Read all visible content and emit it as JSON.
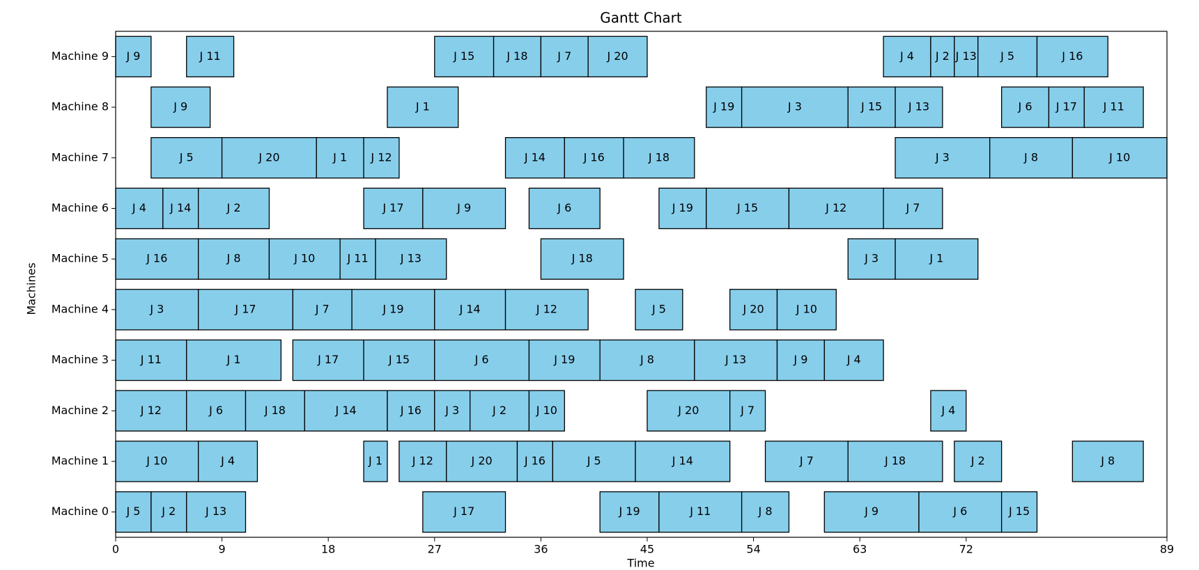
{
  "chart_data": {
    "type": "gantt",
    "title": "Gantt Chart",
    "x_label": "Time",
    "y_label": "Machines",
    "color": "#87ceeb",
    "edge_color": "#000000",
    "xlim": [
      0,
      89
    ],
    "xticks": [
      0,
      9,
      18,
      27,
      36,
      45,
      54,
      63,
      72,
      89
    ],
    "categories": [
      "Machine 0",
      "Machine 1",
      "Machine 2",
      "Machine 3",
      "Machine 4",
      "Machine 5",
      "Machine 6",
      "Machine 7",
      "Machine 8",
      "Machine 9"
    ],
    "tasks": [
      [
        {
          "label": "J 5",
          "start": 0,
          "duration": 3
        },
        {
          "label": "J 2",
          "start": 3,
          "duration": 3
        },
        {
          "label": "J 13",
          "start": 6,
          "duration": 5
        },
        {
          "label": "J 17",
          "start": 26,
          "duration": 7
        },
        {
          "label": "J 19",
          "start": 41,
          "duration": 5
        },
        {
          "label": "J 11",
          "start": 46,
          "duration": 7
        },
        {
          "label": "J 8",
          "start": 53,
          "duration": 4
        },
        {
          "label": "J 9",
          "start": 60,
          "duration": 8
        },
        {
          "label": "J 6",
          "start": 68,
          "duration": 7
        },
        {
          "label": "J 15",
          "start": 75,
          "duration": 3
        }
      ],
      [
        {
          "label": "J 10",
          "start": 0,
          "duration": 7
        },
        {
          "label": "J 4",
          "start": 7,
          "duration": 5
        },
        {
          "label": "J 1",
          "start": 21,
          "duration": 2
        },
        {
          "label": "J 12",
          "start": 24,
          "duration": 4
        },
        {
          "label": "J 20",
          "start": 28,
          "duration": 6
        },
        {
          "label": "J 16",
          "start": 34,
          "duration": 3
        },
        {
          "label": "J 5",
          "start": 37,
          "duration": 7
        },
        {
          "label": "J 14",
          "start": 44,
          "duration": 8
        },
        {
          "label": "J 7",
          "start": 55,
          "duration": 7
        },
        {
          "label": "J 18",
          "start": 62,
          "duration": 8
        },
        {
          "label": "J 2",
          "start": 71,
          "duration": 4
        },
        {
          "label": "J 8",
          "start": 81,
          "duration": 6
        }
      ],
      [
        {
          "label": "J 12",
          "start": 0,
          "duration": 6
        },
        {
          "label": "J 6",
          "start": 6,
          "duration": 5
        },
        {
          "label": "J 18",
          "start": 11,
          "duration": 5
        },
        {
          "label": "J 14",
          "start": 16,
          "duration": 7
        },
        {
          "label": "J 16",
          "start": 23,
          "duration": 4
        },
        {
          "label": "J 3",
          "start": 27,
          "duration": 3
        },
        {
          "label": "J 2",
          "start": 30,
          "duration": 5
        },
        {
          "label": "J 10",
          "start": 35,
          "duration": 3
        },
        {
          "label": "J 20",
          "start": 45,
          "duration": 7
        },
        {
          "label": "J 7",
          "start": 52,
          "duration": 3
        },
        {
          "label": "J 4",
          "start": 69,
          "duration": 3
        }
      ],
      [
        {
          "label": "J 11",
          "start": 0,
          "duration": 6
        },
        {
          "label": "J 1",
          "start": 6,
          "duration": 8
        },
        {
          "label": "J 17",
          "start": 15,
          "duration": 6
        },
        {
          "label": "J 15",
          "start": 21,
          "duration": 6
        },
        {
          "label": "J 6",
          "start": 27,
          "duration": 8
        },
        {
          "label": "J 19",
          "start": 35,
          "duration": 6
        },
        {
          "label": "J 8",
          "start": 41,
          "duration": 8
        },
        {
          "label": "J 13",
          "start": 49,
          "duration": 7
        },
        {
          "label": "J 9",
          "start": 56,
          "duration": 4
        },
        {
          "label": "J 4",
          "start": 60,
          "duration": 5
        }
      ],
      [
        {
          "label": "J 3",
          "start": 0,
          "duration": 7
        },
        {
          "label": "J 17",
          "start": 7,
          "duration": 8
        },
        {
          "label": "J 7",
          "start": 15,
          "duration": 5
        },
        {
          "label": "J 19",
          "start": 20,
          "duration": 7
        },
        {
          "label": "J 14",
          "start": 27,
          "duration": 6
        },
        {
          "label": "J 12",
          "start": 33,
          "duration": 7
        },
        {
          "label": "J 5",
          "start": 44,
          "duration": 4
        },
        {
          "label": "J 20",
          "start": 52,
          "duration": 4
        },
        {
          "label": "J 10",
          "start": 56,
          "duration": 5
        }
      ],
      [
        {
          "label": "J 16",
          "start": 0,
          "duration": 7
        },
        {
          "label": "J 8",
          "start": 7,
          "duration": 6
        },
        {
          "label": "J 10",
          "start": 13,
          "duration": 6
        },
        {
          "label": "J 11",
          "start": 19,
          "duration": 3
        },
        {
          "label": "J 13",
          "start": 22,
          "duration": 6
        },
        {
          "label": "J 18",
          "start": 36,
          "duration": 7
        },
        {
          "label": "J 3",
          "start": 62,
          "duration": 4
        },
        {
          "label": "J 1",
          "start": 66,
          "duration": 7
        }
      ],
      [
        {
          "label": "J 4",
          "start": 0,
          "duration": 4
        },
        {
          "label": "J 14",
          "start": 4,
          "duration": 3
        },
        {
          "label": "J 2",
          "start": 7,
          "duration": 6
        },
        {
          "label": "J 17",
          "start": 21,
          "duration": 5
        },
        {
          "label": "J 9",
          "start": 26,
          "duration": 7
        },
        {
          "label": "J 6",
          "start": 35,
          "duration": 6
        },
        {
          "label": "J 19",
          "start": 46,
          "duration": 4
        },
        {
          "label": "J 15",
          "start": 50,
          "duration": 7
        },
        {
          "label": "J 12",
          "start": 57,
          "duration": 8
        },
        {
          "label": "J 7",
          "start": 65,
          "duration": 5
        }
      ],
      [
        {
          "label": "J 5",
          "start": 3,
          "duration": 6
        },
        {
          "label": "J 20",
          "start": 9,
          "duration": 8
        },
        {
          "label": "J 1",
          "start": 17,
          "duration": 4
        },
        {
          "label": "J 12",
          "start": 21,
          "duration": 3
        },
        {
          "label": "J 14",
          "start": 33,
          "duration": 5
        },
        {
          "label": "J 16",
          "start": 38,
          "duration": 5
        },
        {
          "label": "J 18",
          "start": 43,
          "duration": 6
        },
        {
          "label": "J 3",
          "start": 66,
          "duration": 8
        },
        {
          "label": "J 8",
          "start": 74,
          "duration": 7
        },
        {
          "label": "J 10",
          "start": 81,
          "duration": 8
        }
      ],
      [
        {
          "label": "J 9",
          "start": 3,
          "duration": 5
        },
        {
          "label": "J 1",
          "start": 23,
          "duration": 6
        },
        {
          "label": "J 19",
          "start": 50,
          "duration": 3
        },
        {
          "label": "J 3",
          "start": 53,
          "duration": 9
        },
        {
          "label": "J 15",
          "start": 62,
          "duration": 4
        },
        {
          "label": "J 13",
          "start": 66,
          "duration": 4
        },
        {
          "label": "J 6",
          "start": 75,
          "duration": 4
        },
        {
          "label": "J 17",
          "start": 79,
          "duration": 3
        },
        {
          "label": "J 11",
          "start": 82,
          "duration": 5
        }
      ],
      [
        {
          "label": "J 9",
          "start": 0,
          "duration": 3
        },
        {
          "label": "J 11",
          "start": 6,
          "duration": 4
        },
        {
          "label": "J 15",
          "start": 27,
          "duration": 5
        },
        {
          "label": "J 18",
          "start": 32,
          "duration": 4
        },
        {
          "label": "J 7",
          "start": 36,
          "duration": 4
        },
        {
          "label": "J 20",
          "start": 40,
          "duration": 5
        },
        {
          "label": "J 4",
          "start": 65,
          "duration": 4
        },
        {
          "label": "J 2",
          "start": 69,
          "duration": 2
        },
        {
          "label": "J 13",
          "start": 71,
          "duration": 2
        },
        {
          "label": "J 5",
          "start": 73,
          "duration": 5
        },
        {
          "label": "J 16",
          "start": 78,
          "duration": 6
        }
      ]
    ]
  }
}
